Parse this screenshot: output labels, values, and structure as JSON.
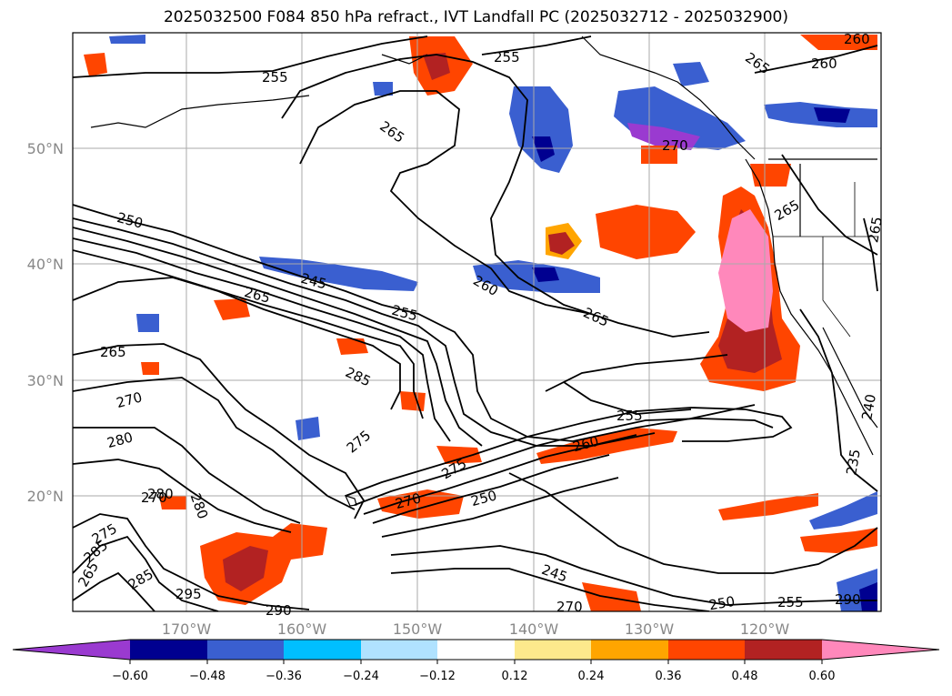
{
  "title": "2025032500 F084 850 hPa refract., IVT Landfall PC (2025032712 - 2025032900)",
  "lat_labels": [
    "50°N",
    "40°N",
    "30°N",
    "20°N"
  ],
  "lon_labels": [
    "170°W",
    "160°W",
    "150°W",
    "140°W",
    "130°W",
    "120°W"
  ],
  "contour_labels": [
    "255",
    "265",
    "255",
    "260",
    "265",
    "270",
    "265",
    "250",
    "245",
    "265",
    "255",
    "260",
    "265",
    "265",
    "270",
    "285",
    "280",
    "275",
    "255",
    "260",
    "270",
    "250",
    "245",
    "235",
    "240",
    "265",
    "275",
    "285",
    "270",
    "280",
    "295",
    "290",
    "270",
    "250",
    "255",
    "260",
    "265",
    "275",
    "280",
    "285",
    "290"
  ],
  "colorbar": {
    "ticks": [
      "−0.60",
      "−0.48",
      "−0.36",
      "−0.24",
      "−0.12",
      "0.12",
      "0.24",
      "0.36",
      "0.48",
      "0.60"
    ],
    "colors": [
      "#9a3ad0",
      "#000090",
      "#3a5fd0",
      "#00bfff",
      "#b0e2ff",
      "#ffffff",
      "#fde98c",
      "#ffa500",
      "#ff4500",
      "#b22222",
      "#ff88bb"
    ]
  }
}
